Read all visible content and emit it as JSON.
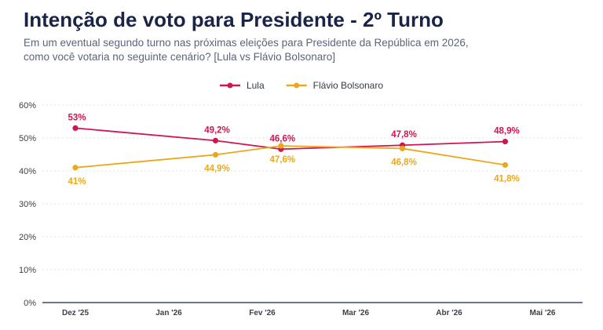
{
  "chart_data": {
    "type": "line",
    "title": "Intenção de voto para Presidente - 2º Turno",
    "subtitle_lines": [
      "Em um eventual segundo turno nas próximas eleições para Presidente da República em 2026,",
      "como você votaria no seguinte cenário? [Lula vs Flávio Bolsonaro]"
    ],
    "x_ticks": [
      "Dez '25",
      "Jan '26",
      "Fev '26",
      "Mar '26",
      "Abr '26",
      "Mai '26"
    ],
    "y_ticks": [
      "0%",
      "10%",
      "20%",
      "30%",
      "40%",
      "50%",
      "60%"
    ],
    "ylim": [
      0,
      60
    ],
    "grid": true,
    "legend_position": "top-center",
    "series": [
      {
        "name": "Lula",
        "color": "#d0154f",
        "x": [
          0,
          1.5,
          2.2,
          3.5,
          4.6
        ],
        "values": [
          53,
          49.2,
          46.6,
          47.8,
          48.9
        ],
        "labels": [
          "53%",
          "49,2%",
          "46,6%",
          "47,8%",
          "48,9%"
        ],
        "label_position": "above"
      },
      {
        "name": "Flávio Bolsonaro",
        "color": "#eaa91c",
        "x": [
          0,
          1.5,
          2.2,
          3.5,
          4.6
        ],
        "values": [
          41,
          44.9,
          47.6,
          46.8,
          41.8
        ],
        "labels": [
          "41%",
          "44,9%",
          "47,6%",
          "46,8%",
          "41,8%"
        ],
        "label_position": "below"
      }
    ]
  }
}
